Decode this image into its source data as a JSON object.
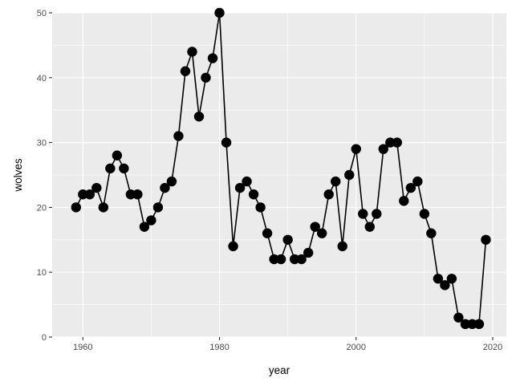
{
  "chart_data": {
    "type": "line",
    "title": "",
    "xlabel": "year",
    "ylabel": "wolves",
    "xlim": [
      1955.5,
      2022
    ],
    "ylim": [
      0,
      50
    ],
    "x_ticks": [
      1960,
      1980,
      2000,
      2020
    ],
    "y_ticks": [
      0,
      10,
      20,
      30,
      40,
      50
    ],
    "grid": true,
    "markers": true,
    "colors": {
      "panel": "#ebebeb",
      "grid": "#ffffff",
      "line": "#000000",
      "tick_text": "#4d4d4d"
    },
    "x": [
      1959,
      1960,
      1961,
      1962,
      1963,
      1964,
      1965,
      1966,
      1967,
      1968,
      1969,
      1970,
      1971,
      1972,
      1973,
      1974,
      1975,
      1976,
      1977,
      1978,
      1979,
      1980,
      1981,
      1982,
      1983,
      1984,
      1985,
      1986,
      1987,
      1988,
      1989,
      1990,
      1991,
      1992,
      1993,
      1994,
      1995,
      1996,
      1997,
      1998,
      1999,
      2000,
      2001,
      2002,
      2003,
      2004,
      2005,
      2006,
      2007,
      2008,
      2009,
      2010,
      2011,
      2012,
      2013,
      2014,
      2015,
      2016,
      2017,
      2018,
      2019
    ],
    "y": [
      20,
      22,
      22,
      23,
      20,
      26,
      28,
      26,
      22,
      22,
      17,
      18,
      20,
      23,
      24,
      31,
      41,
      44,
      34,
      40,
      43,
      50,
      30,
      14,
      23,
      24,
      22,
      20,
      16,
      12,
      12,
      15,
      12,
      12,
      13,
      17,
      16,
      22,
      24,
      14,
      25,
      29,
      19,
      17,
      19,
      29,
      30,
      30,
      21,
      23,
      24,
      19,
      16,
      9,
      8,
      9,
      3,
      2,
      2,
      2,
      15
    ]
  }
}
